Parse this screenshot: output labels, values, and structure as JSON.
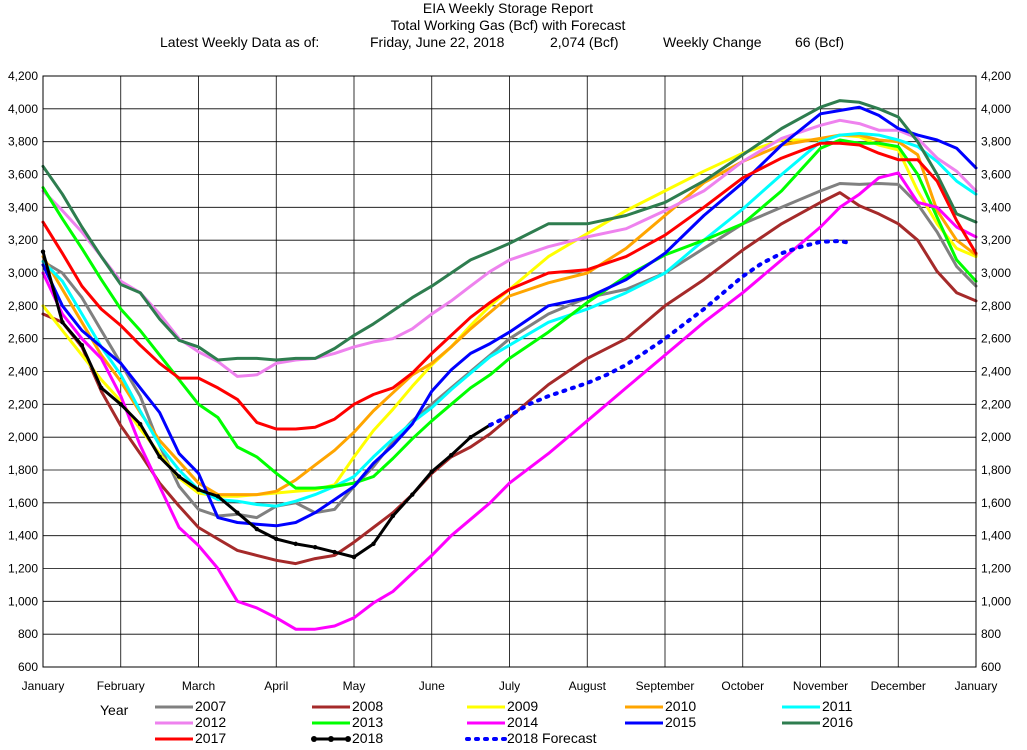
{
  "chart_data": {
    "type": "line",
    "title": "EIA Weekly Storage Report",
    "subtitle": "Total Working Gas (Bcf) with Forecast",
    "info": {
      "latest_label": "Latest Weekly Data as of:",
      "date": "Friday, June 22, 2018",
      "value": "2,074 (Bcf)",
      "change_label": "Weekly Change",
      "change": "66 (Bcf)"
    },
    "xlabel": "",
    "ylabel": "",
    "ylim": [
      600,
      4200
    ],
    "xlim": [
      0,
      12
    ],
    "y_ticks": [
      600,
      800,
      1000,
      1200,
      1400,
      1600,
      1800,
      2000,
      2200,
      2400,
      2600,
      2800,
      3000,
      3200,
      3400,
      3600,
      3800,
      4000,
      4200
    ],
    "y_tick_labels": [
      "600",
      "800",
      "1,000",
      "1,200",
      "1,400",
      "1,600",
      "1,800",
      "2,000",
      "2,200",
      "2,400",
      "2,600",
      "2,800",
      "3,000",
      "3,200",
      "3,400",
      "3,600",
      "3,800",
      "4,000",
      "4,200"
    ],
    "x_tick_labels": [
      "January",
      "February",
      "March",
      "April",
      "May",
      "June",
      "July",
      "August",
      "September",
      "October",
      "November",
      "December",
      "January"
    ],
    "grid": true,
    "legend_title": "Year",
    "legend_placement": "bottom",
    "series": [
      {
        "name": "2007",
        "color": "#808080",
        "dash": false,
        "width": 3,
        "x": [
          0,
          0.25,
          0.5,
          0.75,
          1,
          1.25,
          1.5,
          1.75,
          2,
          2.25,
          2.5,
          2.75,
          3,
          3.25,
          3.5,
          3.75,
          4,
          4.25,
          4.5,
          4.75,
          5,
          5.25,
          5.5,
          5.75,
          6,
          6.5,
          7,
          7.5,
          8,
          8.5,
          9,
          9.5,
          10,
          10.25,
          10.5,
          10.75,
          11,
          11.25,
          11.5,
          11.75,
          12
        ],
        "y": [
          3070,
          3000,
          2850,
          2650,
          2450,
          2250,
          1950,
          1700,
          1560,
          1520,
          1530,
          1510,
          1580,
          1600,
          1540,
          1560,
          1700,
          1820,
          1970,
          2100,
          2200,
          2300,
          2400,
          2500,
          2600,
          2750,
          2850,
          2900,
          3000,
          3150,
          3300,
          3400,
          3500,
          3545,
          3540,
          3545,
          3540,
          3420,
          3250,
          3040,
          2920
        ]
      },
      {
        "name": "2008",
        "color": "#A52A2A",
        "dash": false,
        "width": 3,
        "x": [
          0,
          0.25,
          0.5,
          0.75,
          1,
          1.25,
          1.5,
          1.75,
          2,
          2.25,
          2.5,
          2.75,
          3,
          3.25,
          3.5,
          3.75,
          4,
          4.25,
          4.5,
          4.75,
          5,
          5.25,
          5.5,
          5.75,
          6,
          6.5,
          7,
          7.5,
          8,
          8.5,
          9,
          9.5,
          10,
          10.25,
          10.5,
          10.75,
          11,
          11.25,
          11.5,
          11.75,
          12
        ],
        "y": [
          2750,
          2700,
          2550,
          2280,
          2070,
          1900,
          1720,
          1580,
          1450,
          1380,
          1310,
          1280,
          1250,
          1230,
          1260,
          1280,
          1360,
          1450,
          1540,
          1650,
          1780,
          1880,
          1940,
          2020,
          2120,
          2320,
          2480,
          2600,
          2800,
          2960,
          3140,
          3300,
          3430,
          3490,
          3410,
          3360,
          3300,
          3200,
          3010,
          2880,
          2830
        ]
      },
      {
        "name": "2009",
        "color": "#FFFF00",
        "dash": false,
        "width": 3,
        "x": [
          0,
          0.25,
          0.5,
          0.75,
          1,
          1.25,
          1.5,
          1.75,
          2,
          2.25,
          2.5,
          2.75,
          3,
          3.25,
          3.5,
          3.75,
          4,
          4.25,
          4.5,
          4.75,
          5,
          5.25,
          5.5,
          5.75,
          6,
          6.5,
          7,
          7.5,
          8,
          8.5,
          9,
          9.5,
          10,
          10.25,
          10.5,
          10.75,
          11,
          11.25,
          11.5,
          11.75,
          12
        ],
        "y": [
          2800,
          2650,
          2500,
          2350,
          2220,
          2050,
          1900,
          1750,
          1660,
          1640,
          1640,
          1650,
          1660,
          1670,
          1680,
          1710,
          1880,
          2040,
          2170,
          2310,
          2440,
          2550,
          2680,
          2800,
          2900,
          3100,
          3240,
          3380,
          3500,
          3620,
          3730,
          3810,
          3810,
          3840,
          3830,
          3780,
          3750,
          3500,
          3300,
          3150,
          3100
        ]
      },
      {
        "name": "2010",
        "color": "#FFA500",
        "dash": false,
        "width": 3,
        "x": [
          0,
          0.25,
          0.5,
          0.75,
          1,
          1.25,
          1.5,
          1.75,
          2,
          2.25,
          2.5,
          2.75,
          3,
          3.25,
          3.5,
          3.75,
          4,
          4.25,
          4.5,
          4.75,
          5,
          5.25,
          5.5,
          5.75,
          6,
          6.5,
          7,
          7.5,
          8,
          8.5,
          9,
          9.5,
          10,
          10.25,
          10.5,
          10.75,
          11,
          11.25,
          11.5,
          11.75,
          12
        ],
        "y": [
          3100,
          2900,
          2700,
          2500,
          2340,
          2150,
          1980,
          1850,
          1720,
          1650,
          1650,
          1650,
          1670,
          1740,
          1830,
          1920,
          2030,
          2160,
          2270,
          2380,
          2450,
          2550,
          2660,
          2760,
          2860,
          2940,
          3000,
          3150,
          3350,
          3550,
          3680,
          3780,
          3820,
          3840,
          3840,
          3810,
          3800,
          3720,
          3380,
          3200,
          3110
        ]
      },
      {
        "name": "2011",
        "color": "#00FFFF",
        "dash": false,
        "width": 3,
        "x": [
          0,
          0.25,
          0.5,
          0.75,
          1,
          1.25,
          1.5,
          1.75,
          2,
          2.25,
          2.5,
          2.75,
          3,
          3.25,
          3.5,
          3.75,
          4,
          4.25,
          4.5,
          4.75,
          5,
          5.25,
          5.5,
          5.75,
          6,
          6.5,
          7,
          7.5,
          8,
          8.5,
          9,
          9.5,
          10,
          10.25,
          10.5,
          10.75,
          11,
          11.25,
          11.5,
          11.75,
          12
        ],
        "y": [
          3070,
          2950,
          2750,
          2550,
          2380,
          2160,
          1950,
          1800,
          1680,
          1620,
          1610,
          1590,
          1580,
          1610,
          1650,
          1700,
          1760,
          1880,
          1990,
          2090,
          2180,
          2290,
          2390,
          2490,
          2560,
          2700,
          2780,
          2880,
          3000,
          3200,
          3390,
          3600,
          3800,
          3840,
          3850,
          3840,
          3810,
          3770,
          3680,
          3560,
          3480
        ]
      },
      {
        "name": "2012",
        "color": "#EE82EE",
        "dash": false,
        "width": 3,
        "x": [
          0,
          0.25,
          0.5,
          0.75,
          1,
          1.25,
          1.5,
          1.75,
          2,
          2.25,
          2.5,
          2.75,
          3,
          3.25,
          3.5,
          3.75,
          4,
          4.25,
          4.5,
          4.75,
          5,
          5.25,
          5.5,
          5.75,
          6,
          6.5,
          7,
          7.5,
          8,
          8.5,
          9,
          9.5,
          10,
          10.25,
          10.5,
          10.75,
          11,
          11.25,
          11.5,
          11.75,
          12
        ],
        "y": [
          3500,
          3380,
          3250,
          3100,
          2950,
          2880,
          2750,
          2600,
          2520,
          2460,
          2370,
          2380,
          2450,
          2470,
          2480,
          2510,
          2550,
          2580,
          2600,
          2660,
          2750,
          2830,
          2920,
          3010,
          3080,
          3160,
          3220,
          3270,
          3380,
          3500,
          3680,
          3820,
          3900,
          3930,
          3910,
          3870,
          3870,
          3820,
          3700,
          3620,
          3500
        ]
      },
      {
        "name": "2013",
        "color": "#00FF00",
        "dash": false,
        "width": 3,
        "x": [
          0,
          0.25,
          0.5,
          0.75,
          1,
          1.25,
          1.5,
          1.75,
          2,
          2.25,
          2.5,
          2.75,
          3,
          3.25,
          3.5,
          3.75,
          4,
          4.25,
          4.5,
          4.75,
          5,
          5.25,
          5.5,
          5.75,
          6,
          6.5,
          7,
          7.5,
          8,
          8.5,
          9,
          9.5,
          10,
          10.25,
          10.5,
          10.75,
          11,
          11.25,
          11.5,
          11.75,
          12
        ],
        "y": [
          3520,
          3330,
          3150,
          2960,
          2780,
          2650,
          2500,
          2350,
          2200,
          2120,
          1940,
          1880,
          1780,
          1690,
          1690,
          1700,
          1720,
          1760,
          1870,
          1990,
          2100,
          2200,
          2300,
          2380,
          2480,
          2640,
          2820,
          2980,
          3110,
          3200,
          3300,
          3500,
          3760,
          3810,
          3790,
          3790,
          3770,
          3600,
          3340,
          3080,
          2950
        ]
      },
      {
        "name": "2014",
        "color": "#FF00FF",
        "dash": false,
        "width": 3,
        "x": [
          0,
          0.25,
          0.5,
          0.75,
          1,
          1.25,
          1.5,
          1.75,
          2,
          2.25,
          2.5,
          2.75,
          3,
          3.25,
          3.5,
          3.75,
          4,
          4.25,
          4.5,
          4.75,
          5,
          5.25,
          5.5,
          5.75,
          6,
          6.5,
          7,
          7.5,
          8,
          8.5,
          9,
          9.5,
          10,
          10.25,
          10.5,
          10.75,
          11,
          11.25,
          11.5,
          11.75,
          12
        ],
        "y": [
          3000,
          2750,
          2600,
          2480,
          2250,
          1950,
          1700,
          1450,
          1340,
          1200,
          1000,
          960,
          900,
          830,
          830,
          850,
          900,
          990,
          1060,
          1170,
          1280,
          1400,
          1500,
          1600,
          1720,
          1900,
          2100,
          2300,
          2500,
          2700,
          2880,
          3080,
          3280,
          3400,
          3480,
          3580,
          3610,
          3430,
          3400,
          3280,
          3220
        ]
      },
      {
        "name": "2015",
        "color": "#0000FF",
        "dash": false,
        "width": 3,
        "x": [
          0,
          0.25,
          0.5,
          0.75,
          1,
          1.25,
          1.5,
          1.75,
          2,
          2.25,
          2.5,
          2.75,
          3,
          3.25,
          3.5,
          3.75,
          4,
          4.25,
          4.5,
          4.75,
          5,
          5.25,
          5.5,
          5.75,
          6,
          6.5,
          7,
          7.5,
          8,
          8.5,
          9,
          9.5,
          10,
          10.25,
          10.5,
          10.75,
          11,
          11.25,
          11.5,
          11.75,
          12
        ],
        "y": [
          3050,
          2800,
          2650,
          2550,
          2450,
          2300,
          2150,
          1900,
          1780,
          1510,
          1480,
          1470,
          1460,
          1480,
          1540,
          1620,
          1700,
          1840,
          1950,
          2080,
          2280,
          2410,
          2510,
          2570,
          2640,
          2800,
          2850,
          2960,
          3120,
          3350,
          3550,
          3780,
          3970,
          3990,
          4010,
          3960,
          3880,
          3840,
          3810,
          3760,
          3640
        ]
      },
      {
        "name": "2016",
        "color": "#2E7D4F",
        "dash": false,
        "width": 3,
        "x": [
          0,
          0.25,
          0.5,
          0.75,
          1,
          1.25,
          1.5,
          1.75,
          2,
          2.25,
          2.5,
          2.75,
          3,
          3.25,
          3.5,
          3.75,
          4,
          4.25,
          4.5,
          4.75,
          5,
          5.25,
          5.5,
          5.75,
          6,
          6.5,
          7,
          7.5,
          8,
          8.5,
          9,
          9.5,
          10,
          10.25,
          10.5,
          10.75,
          11,
          11.25,
          11.5,
          11.75,
          12
        ],
        "y": [
          3650,
          3480,
          3280,
          3100,
          2930,
          2880,
          2720,
          2590,
          2550,
          2470,
          2480,
          2480,
          2470,
          2480,
          2480,
          2540,
          2620,
          2690,
          2770,
          2850,
          2920,
          3000,
          3080,
          3130,
          3180,
          3300,
          3300,
          3350,
          3430,
          3560,
          3720,
          3880,
          4010,
          4050,
          4040,
          4000,
          3950,
          3800,
          3600,
          3360,
          3310
        ]
      },
      {
        "name": "2017",
        "color": "#FF0000",
        "dash": false,
        "width": 3,
        "x": [
          0,
          0.25,
          0.5,
          0.75,
          1,
          1.25,
          1.5,
          1.75,
          2,
          2.25,
          2.5,
          2.75,
          3,
          3.25,
          3.5,
          3.75,
          4,
          4.25,
          4.5,
          4.75,
          5,
          5.25,
          5.5,
          5.75,
          6,
          6.5,
          7,
          7.5,
          8,
          8.5,
          9,
          9.5,
          10,
          10.25,
          10.5,
          10.75,
          11,
          11.25,
          11.5,
          11.75,
          12
        ],
        "y": [
          3310,
          3120,
          2920,
          2780,
          2680,
          2560,
          2450,
          2360,
          2360,
          2300,
          2230,
          2090,
          2050,
          2050,
          2060,
          2110,
          2200,
          2260,
          2300,
          2390,
          2510,
          2620,
          2730,
          2820,
          2900,
          3000,
          3020,
          3100,
          3230,
          3400,
          3580,
          3700,
          3790,
          3790,
          3780,
          3730,
          3690,
          3690,
          3560,
          3320,
          3120
        ]
      },
      {
        "name": "2018",
        "color": "#000000",
        "dash": false,
        "width": 3,
        "x": [
          0,
          0.25,
          0.5,
          0.75,
          1,
          1.25,
          1.5,
          1.75,
          2,
          2.25,
          2.5,
          2.75,
          3,
          3.25,
          3.5,
          3.75,
          4,
          4.25,
          4.5,
          4.75,
          5,
          5.25,
          5.5,
          5.75
        ],
        "y": [
          3130,
          2700,
          2560,
          2300,
          2200,
          2080,
          1880,
          1760,
          1680,
          1640,
          1540,
          1440,
          1380,
          1350,
          1330,
          1300,
          1270,
          1350,
          1520,
          1650,
          1790,
          1890,
          2000,
          2074
        ]
      },
      {
        "name": "2018 Forecast",
        "color": "#0000FF",
        "dash": true,
        "width": 3,
        "x": [
          5.75,
          6,
          6.25,
          6.5,
          6.75,
          7,
          7.25,
          7.5,
          7.75,
          8,
          8.25,
          8.5,
          8.75,
          9,
          9.25,
          9.5,
          9.75,
          10,
          10.25,
          10.4
        ],
        "y": [
          2074,
          2130,
          2200,
          2250,
          2290,
          2330,
          2380,
          2440,
          2520,
          2600,
          2690,
          2780,
          2880,
          2980,
          3060,
          3120,
          3160,
          3190,
          3195,
          3180
        ]
      }
    ]
  }
}
